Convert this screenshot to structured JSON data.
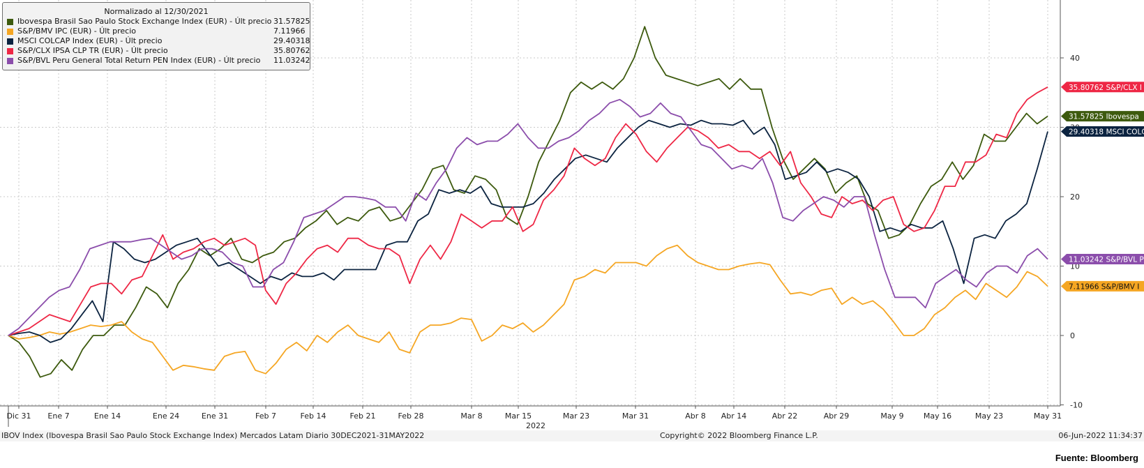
{
  "chart_data": {
    "type": "line",
    "title": "Normalizado al 12/30/2021",
    "x_labels": [
      "Dic 31",
      "Ene 7",
      "Ene 14",
      "Ene 24",
      "Ene 31",
      "Feb 7",
      "Feb 14",
      "Feb 21",
      "Feb 28",
      "Mar 8",
      "Mar 15",
      "Mar 23",
      "Mar 31",
      "Abr 8",
      "Abr 14",
      "Abr 22",
      "Abr 29",
      "May 9",
      "May 16",
      "May 23",
      "May 31"
    ],
    "x_year_label": "2022",
    "ylim": [
      -10,
      50
    ],
    "y_ticks": [
      -10,
      0,
      10,
      20,
      30,
      40
    ],
    "grid": true,
    "series": [
      {
        "key": "ibov",
        "legend": "Ibovespa Brasil Sao Paulo Stock Exchange Index (EUR) - Últ precio",
        "last": "31.57825",
        "tag": "31.57825 Ibovespa",
        "color": "#3d5a0e",
        "values": [
          0,
          -1,
          -3,
          -6,
          -5.5,
          -3.5,
          -5,
          -2,
          0,
          0,
          1.5,
          1.5,
          4,
          7,
          6,
          4,
          7.5,
          9.5,
          12.5,
          11.5,
          12.5,
          14,
          11,
          10.5,
          11.5,
          12,
          13.5,
          14,
          15.5,
          16.5,
          18,
          16,
          17,
          16.5,
          18,
          18.5,
          16.5,
          17,
          19,
          21,
          24,
          24.5,
          21,
          20.5,
          23,
          22.5,
          21,
          17,
          16,
          20,
          25,
          28,
          31,
          35,
          36.5,
          35.5,
          36.5,
          35.5,
          37,
          40,
          44.5,
          40,
          37.5,
          37,
          36.5,
          36,
          36.5,
          37,
          35.5,
          37,
          35.5,
          35.5,
          30,
          25.5,
          22.5,
          24,
          25.5,
          24,
          20.5,
          22,
          23,
          19,
          18,
          14,
          14.5,
          16,
          19,
          21.5,
          22.5,
          25,
          22.5,
          24.5,
          29,
          28,
          28,
          30,
          32,
          30.5,
          31.6
        ]
      },
      {
        "key": "ipc",
        "legend": "S&P/BMV IPC (EUR) - Últ precio",
        "last": "7.11966",
        "tag": "7.11966  S&P/BMV I",
        "color": "#f5a623",
        "values": [
          0,
          -0.5,
          -0.3,
          0,
          0.5,
          0.2,
          0.5,
          1,
          1.5,
          1.3,
          1.5,
          2,
          0.5,
          -0.5,
          -1,
          -3,
          -5,
          -4.3,
          -4.5,
          -4.8,
          -5,
          -3,
          -2.5,
          -2.3,
          -5,
          -5.5,
          -4,
          -2,
          -1,
          -2.2,
          0,
          -1,
          0.5,
          1.5,
          0,
          -0.5,
          -1,
          0.5,
          -2,
          -2.5,
          0.5,
          1.5,
          1.5,
          1.8,
          2.5,
          2.3,
          -0.8,
          0,
          1.5,
          1,
          1.8,
          0.5,
          1.5,
          3,
          4.5,
          8,
          8.5,
          9.5,
          9,
          10.5,
          10.5,
          10.5,
          10,
          11.5,
          12.5,
          13,
          11.5,
          10.5,
          10,
          9.5,
          9.5,
          10,
          10.3,
          10.5,
          10.2,
          8,
          6,
          6.2,
          5.8,
          6.5,
          6.8,
          4.5,
          5.5,
          4.5,
          5,
          3.8,
          2,
          0,
          0,
          1,
          3,
          4,
          5.5,
          6.5,
          5.2,
          7.5,
          6.5,
          5.5,
          7,
          9.2,
          8.5,
          7.1
        ]
      },
      {
        "key": "colcap",
        "legend": "MSCI COLCAP Index (EUR) - Últ precio",
        "last": "29.40318",
        "tag": "29.40318 MSCI COLC",
        "color": "#0b2340",
        "values": [
          0,
          0.3,
          0.5,
          0,
          -1,
          -0.5,
          1,
          3,
          5,
          2,
          13.5,
          12.5,
          11,
          10.5,
          11,
          12,
          13,
          13.5,
          14,
          12,
          10,
          10.5,
          9.5,
          8.5,
          7.5,
          8.5,
          8,
          9,
          8.5,
          8.5,
          9,
          8,
          9.5,
          9.5,
          9.5,
          9.5,
          13,
          13.5,
          13.5,
          16.5,
          17.5,
          21,
          20.5,
          21,
          20.5,
          21.5,
          19,
          18.5,
          18.5,
          18.5,
          19,
          20.5,
          22.5,
          24,
          25.5,
          26,
          25.5,
          25,
          27,
          28.5,
          30,
          31,
          30.5,
          30,
          30.5,
          30.3,
          31,
          30.5,
          30.5,
          30.3,
          31,
          29,
          30,
          27.5,
          22.5,
          23,
          23.5,
          25,
          23.5,
          24,
          23.5,
          22.5,
          20,
          15,
          15.5,
          15,
          16,
          15.5,
          15.5,
          16.5,
          12.5,
          7.5,
          14,
          14.5,
          14,
          16.5,
          17.5,
          19,
          24,
          29.4
        ]
      },
      {
        "key": "ipsa",
        "legend": "S&P/CLX IPSA CLP TR (EUR) - Últ precio",
        "last": "35.80762",
        "tag": "35.80762 S&P/CLX I",
        "color": "#ee2745",
        "values": [
          0,
          0.5,
          1,
          2,
          3,
          2.5,
          2,
          4.5,
          7,
          7.5,
          7.5,
          6,
          8,
          8.5,
          11.5,
          14.5,
          11,
          12,
          12.5,
          13.5,
          14,
          13,
          13.5,
          14,
          13,
          6.5,
          4.5,
          7.5,
          9,
          11,
          12.5,
          13,
          12,
          14,
          14,
          13,
          12.5,
          12.5,
          11.5,
          7.5,
          11,
          13,
          11,
          13.5,
          17.5,
          16.5,
          15.5,
          16.5,
          16.5,
          18.5,
          15,
          16,
          19.5,
          21,
          23,
          27,
          25.5,
          24.5,
          25.5,
          28.5,
          30.5,
          29,
          26.5,
          25,
          27,
          28.5,
          30,
          29.5,
          28.5,
          27,
          27.5,
          26.5,
          26.5,
          25.5,
          26.5,
          24.5,
          26.5,
          22,
          20,
          17.5,
          17,
          20,
          19,
          19.5,
          18,
          19.5,
          20,
          16,
          15,
          15.5,
          18,
          21.5,
          21.5,
          25,
          25,
          26,
          29,
          28.5,
          32,
          34,
          35,
          35.8
        ]
      },
      {
        "key": "peru",
        "legend": "S&P/BVL Peru General Total Return PEN Index (EUR) - Últ precio",
        "last": "11.03242",
        "tag": "11.03242 S&P/BVL P",
        "color": "#8b4dab",
        "values": [
          0,
          1,
          2.5,
          4,
          5.5,
          6.5,
          7,
          9.5,
          12.5,
          13,
          13.5,
          13.5,
          13.5,
          13.8,
          14,
          13,
          12,
          11,
          11.5,
          12.5,
          12.5,
          12,
          10.5,
          10,
          7,
          7,
          9.5,
          10.5,
          13.5,
          17,
          17.5,
          18,
          19,
          20,
          20,
          19.8,
          19.5,
          18.5,
          18.5,
          16.5,
          20.5,
          19.5,
          22,
          24,
          27,
          28.5,
          27.5,
          28,
          28,
          29,
          30.5,
          28.5,
          27,
          27,
          28,
          28.5,
          29.5,
          31,
          32,
          33.5,
          34,
          33,
          31.5,
          32,
          33.5,
          32,
          31.5,
          29.5,
          27.5,
          27,
          25.5,
          24,
          24.5,
          24,
          25.5,
          22,
          17,
          16.5,
          18,
          19,
          20,
          19.5,
          18.5,
          20,
          20,
          14.5,
          9.5,
          5.5,
          5.5,
          5.5,
          4,
          7.5,
          8.5,
          9.5,
          8,
          7,
          9,
          10,
          10,
          9,
          11.5,
          12.5,
          11
        ]
      }
    ]
  },
  "footer": {
    "left": "IBOV Index (Ibovespa Brasil Sao Paulo Stock Exchange Index) Mercados Latam  Diario 30DEC2021-31MAY2022",
    "center": "Copyright© 2022 Bloomberg Finance L.P.",
    "right": "06-Jun-2022 11:34:37"
  },
  "source": "Fuente: Bloomberg"
}
